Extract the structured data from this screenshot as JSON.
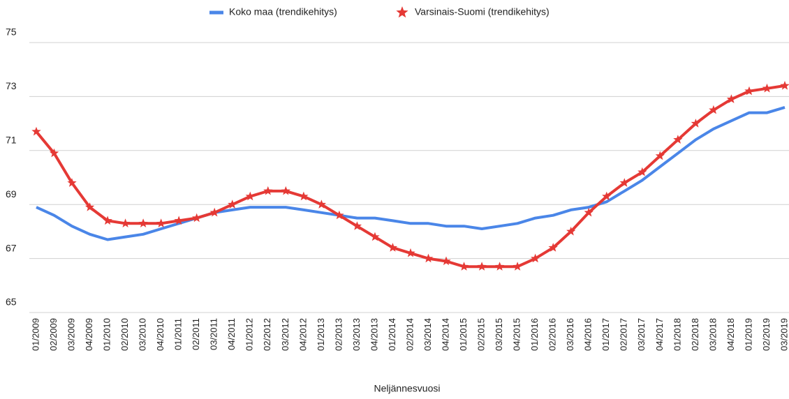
{
  "chart_data": {
    "type": "line",
    "x_label": "Neljännesvuosi",
    "categories": [
      "01/2009",
      "02/2009",
      "03/2009",
      "04/2009",
      "01/2010",
      "02/2010",
      "03/2010",
      "04/2010",
      "01/2011",
      "02/2011",
      "03/2011",
      "04/2011",
      "01/2012",
      "02/2012",
      "03/2012",
      "04/2012",
      "01/2013",
      "02/2013",
      "03/2013",
      "04/2013",
      "01/2014",
      "02/2014",
      "03/2014",
      "04/2014",
      "01/2015",
      "02/2015",
      "03/2015",
      "04/2015",
      "01/2016",
      "02/2016",
      "03/2016",
      "04/2016",
      "01/2017",
      "02/2017",
      "03/2017",
      "04/2017",
      "01/2018",
      "02/2018",
      "03/2018",
      "04/2018",
      "01/2019",
      "02/2019",
      "03/2019"
    ],
    "series": [
      {
        "name": "Koko maa (trendikehitys)",
        "color": "#4a86e8",
        "marker": "none",
        "values": [
          68.9,
          68.6,
          68.2,
          67.9,
          67.7,
          67.8,
          67.9,
          68.1,
          68.3,
          68.5,
          68.7,
          68.8,
          68.9,
          68.9,
          68.9,
          68.8,
          68.7,
          68.6,
          68.5,
          68.5,
          68.4,
          68.3,
          68.3,
          68.2,
          68.2,
          68.1,
          68.2,
          68.3,
          68.5,
          68.6,
          68.8,
          68.9,
          69.1,
          69.5,
          69.9,
          70.4,
          70.9,
          71.4,
          71.8,
          72.1,
          72.4,
          72.4,
          72.6
        ]
      },
      {
        "name": "Varsinais-Suomi (trendikehitys)",
        "color": "#e53935",
        "marker": "star",
        "values": [
          71.7,
          70.9,
          69.8,
          68.9,
          68.4,
          68.3,
          68.3,
          68.3,
          68.4,
          68.5,
          68.7,
          69.0,
          69.3,
          69.5,
          69.5,
          69.3,
          69.0,
          68.6,
          68.2,
          67.8,
          67.4,
          67.2,
          67.0,
          66.9,
          66.7,
          66.7,
          66.7,
          66.7,
          67.0,
          67.4,
          68.0,
          68.7,
          69.3,
          69.8,
          70.2,
          70.8,
          71.4,
          72.0,
          72.5,
          72.9,
          73.2,
          73.3,
          73.4
        ]
      }
    ],
    "ylim": [
      65,
      75
    ],
    "yticks": [
      65,
      67,
      69,
      71,
      73,
      75
    ],
    "grid": true
  }
}
